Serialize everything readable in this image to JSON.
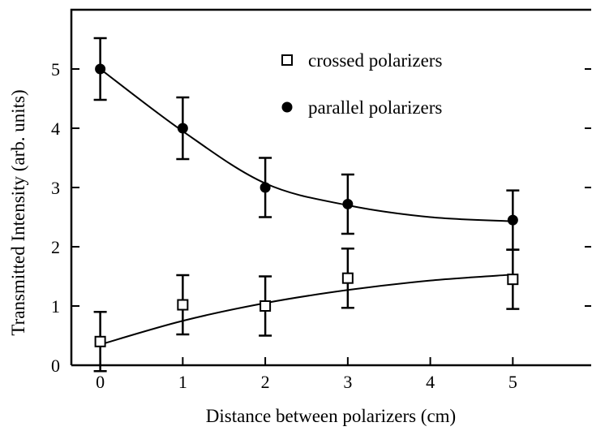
{
  "chart_data": {
    "type": "scatter",
    "xlabel": "Distance between polarizers (cm)",
    "ylabel": "Transmitted Intensity (arb. units)",
    "x": [
      0,
      1,
      2,
      3,
      5
    ],
    "fit_x": [
      0,
      1,
      2,
      3,
      4,
      5
    ],
    "series": [
      {
        "name": "crossed polarizers",
        "marker": "square",
        "color": "#000000",
        "values": [
          0.4,
          1.02,
          1.0,
          1.47,
          1.45
        ],
        "errors": [
          0.5,
          0.5,
          0.5,
          0.5,
          0.5
        ],
        "fit": [
          0.35,
          0.75,
          1.05,
          1.27,
          1.43,
          1.53
        ]
      },
      {
        "name": "parallel polarizers",
        "marker": "circle",
        "color": "#000000",
        "values": [
          5.0,
          4.0,
          3.0,
          2.72,
          2.45
        ],
        "errors": [
          0.52,
          0.52,
          0.5,
          0.5,
          0.5
        ],
        "fit": [
          5.0,
          3.95,
          3.07,
          2.7,
          2.5,
          2.43
        ]
      }
    ],
    "xlim": [
      -0.35,
      5.95
    ],
    "ylim": [
      0,
      6
    ],
    "xticks": [
      0,
      1,
      2,
      3,
      4,
      5
    ],
    "yticks": [
      0,
      1,
      2,
      3,
      4,
      5
    ],
    "grid": false
  }
}
